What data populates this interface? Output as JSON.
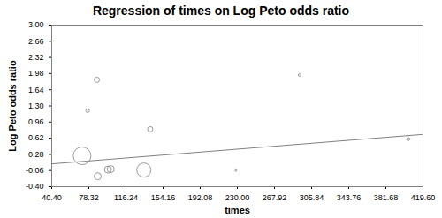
{
  "chart_data": {
    "type": "scatter",
    "title": "Regression of times on Log Peto odds ratio",
    "x_label": "times",
    "y_label": "Log Peto odds ratio",
    "x": [
      71.4,
      77.1,
      86.5,
      87.4,
      97.8,
      100.7,
      134.5,
      141.0,
      228.5,
      293.5,
      404.5
    ],
    "values": [
      0.25,
      1.2,
      1.85,
      -0.18,
      -0.04,
      -0.03,
      -0.05,
      0.81,
      -0.06,
      1.95,
      0.6
    ],
    "sizes": [
      100,
      4,
      9,
      16,
      16,
      16,
      64,
      9,
      1,
      2,
      3
    ],
    "color": "#808080",
    "marker": "hollow circle",
    "regression_line": {
      "x": [
        40.4,
        419.6
      ],
      "values": [
        0.08,
        0.7
      ],
      "color": "#808080"
    },
    "xlim": [
      40.4,
      419.6
    ],
    "xticks": [
      {
        "value": 40.4,
        "label": "40.40"
      },
      {
        "value": 78.32,
        "label": "78.32"
      },
      {
        "value": 116.24,
        "label": "116.24"
      },
      {
        "value": 154.16,
        "label": "154.16"
      },
      {
        "value": 192.08,
        "label": "192.08"
      },
      {
        "value": 230,
        "label": "230.00"
      },
      {
        "value": 267.92,
        "label": "267.92"
      },
      {
        "value": 305.84,
        "label": "305.84"
      },
      {
        "value": 343.76,
        "label": "343.76"
      },
      {
        "value": 381.68,
        "label": "381.68"
      },
      {
        "value": 419.6,
        "label": "419.60"
      }
    ],
    "ylim": [
      -0.4,
      3.0
    ],
    "yticks": [
      {
        "value": -0.4,
        "label": "-0.40"
      },
      {
        "value": -0.06,
        "label": "-0.06"
      },
      {
        "value": 0.28,
        "label": "0.28"
      },
      {
        "value": 0.62,
        "label": "0.62"
      },
      {
        "value": 0.96,
        "label": "0.96"
      },
      {
        "value": 1.3,
        "label": "1.30"
      },
      {
        "value": 1.64,
        "label": "1.64"
      },
      {
        "value": 1.98,
        "label": "1.98"
      },
      {
        "value": 2.32,
        "label": "2.32"
      },
      {
        "value": 2.66,
        "label": "2.66"
      },
      {
        "value": 3.0,
        "label": "3.00"
      }
    ],
    "grid": false
  }
}
